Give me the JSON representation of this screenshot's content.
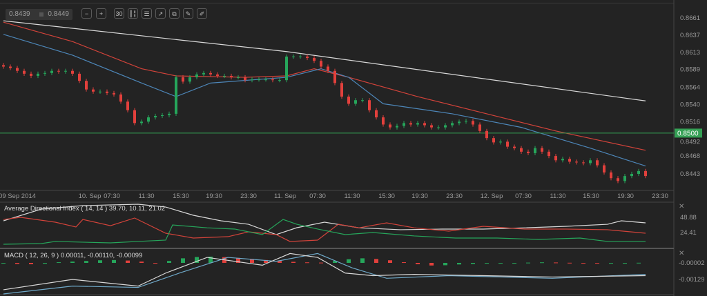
{
  "toolbar": {
    "bid": "0.8439",
    "ask": "0.8449",
    "buttons": [
      {
        "icon": "zoom-out-icon",
        "glyph": "−"
      },
      {
        "icon": "zoom-in-icon",
        "glyph": "+"
      },
      {
        "icon": "timeframe-icon",
        "glyph": "30"
      },
      {
        "icon": "chart-type-icon",
        "glyph": "┃╏"
      },
      {
        "icon": "indicators-icon",
        "glyph": "☰"
      },
      {
        "icon": "trend-chart-icon",
        "glyph": "↗"
      },
      {
        "icon": "copy-icon",
        "glyph": "⧉"
      },
      {
        "icon": "edit-icon",
        "glyph": "✎"
      },
      {
        "icon": "draw-icon",
        "glyph": "✐"
      }
    ]
  },
  "colors": {
    "up": "#26a65b",
    "down": "#e2403c",
    "ma_long": "#d9d9d9",
    "ma_mid": "#d2433a",
    "ma_fast": "#4d86b8",
    "current_price": "#35a055",
    "background": "#232323"
  },
  "chart_data": [
    {
      "type": "candlestick",
      "title": "",
      "y_axis_ticks": [
        "0.8661",
        "0.8637",
        "0.8613",
        "0.8589",
        "0.8564",
        "0.8540",
        "0.8516",
        "0.8492",
        "0.8468",
        "0.8443"
      ],
      "ylim": [
        0.8425,
        0.8664
      ],
      "x_axis_ticks": [
        {
          "label": "09 Sep 2014",
          "index": 2
        },
        {
          "label": "10. Sep",
          "index": 12.5
        },
        {
          "label": "07:30",
          "index": 15.7
        },
        {
          "label": "11:30",
          "index": 20.7
        },
        {
          "label": "15:30",
          "index": 25.7
        },
        {
          "label": "19:30",
          "index": 30.5
        },
        {
          "label": "23:30",
          "index": 35.5
        },
        {
          "label": "11. Sep",
          "index": 40.8
        },
        {
          "label": "07:30",
          "index": 45.5
        },
        {
          "label": "11:30",
          "index": 50.5
        },
        {
          "label": "15:30",
          "index": 55.5
        },
        {
          "label": "19:30",
          "index": 60.3
        },
        {
          "label": "23:30",
          "index": 65.3
        },
        {
          "label": "12. Sep",
          "index": 70.7
        },
        {
          "label": "07:30",
          "index": 75.3
        },
        {
          "label": "11:30",
          "index": 80.3
        },
        {
          "label": "15:30",
          "index": 85.1
        },
        {
          "label": "19:30",
          "index": 90.1
        },
        {
          "label": "23:30",
          "index": 95.1
        }
      ],
      "closes": [
        0.8593,
        0.8591,
        0.8587,
        0.8583,
        0.858,
        0.8583,
        0.8584,
        0.8587,
        0.8586,
        0.8587,
        0.8583,
        0.8573,
        0.8561,
        0.8558,
        0.8558,
        0.8556,
        0.8554,
        0.8544,
        0.8532,
        0.8514,
        0.8516,
        0.8522,
        0.8524,
        0.8525,
        0.8527,
        0.8578,
        0.8572,
        0.8578,
        0.8582,
        0.8584,
        0.8582,
        0.858,
        0.858,
        0.8578,
        0.8578,
        0.8574,
        0.8575,
        0.8575,
        0.8575,
        0.8574,
        0.8574,
        0.8607,
        0.8607,
        0.8607,
        0.8605,
        0.8601,
        0.8593,
        0.8587,
        0.857,
        0.8551,
        0.8541,
        0.8546,
        0.8546,
        0.8532,
        0.8522,
        0.8512,
        0.8508,
        0.851,
        0.8514,
        0.8512,
        0.8514,
        0.8511,
        0.8508,
        0.8508,
        0.8511,
        0.8514,
        0.8516,
        0.8517,
        0.8512,
        0.8503,
        0.8493,
        0.8487,
        0.8488,
        0.8481,
        0.8479,
        0.8474,
        0.8472,
        0.8479,
        0.8474,
        0.8468,
        0.8462,
        0.8464,
        0.846,
        0.8459,
        0.8458,
        0.8462,
        0.8455,
        0.8445,
        0.8437,
        0.8433,
        0.844,
        0.8443,
        0.8447,
        0.844
      ],
      "moving_averages": [
        {
          "color_key": "ma_long",
          "points": [
            [
              0,
              0.8657
            ],
            [
              41,
              0.8614
            ],
            [
              93,
              0.8545
            ]
          ]
        },
        {
          "color_key": "ma_mid",
          "points": [
            [
              0,
              0.8655
            ],
            [
              10,
              0.8628
            ],
            [
              20,
              0.859
            ],
            [
              25,
              0.858
            ],
            [
              35,
              0.8578
            ],
            [
              41,
              0.858
            ],
            [
              45,
              0.859
            ],
            [
              50,
              0.8578
            ],
            [
              60,
              0.8551
            ],
            [
              70,
              0.8527
            ],
            [
              80,
              0.8503
            ],
            [
              93,
              0.8476
            ]
          ]
        },
        {
          "color_key": "ma_fast",
          "points": [
            [
              0,
              0.8638
            ],
            [
              10,
              0.8609
            ],
            [
              20,
              0.857
            ],
            [
              25,
              0.8551
            ],
            [
              30,
              0.857
            ],
            [
              41,
              0.8578
            ],
            [
              46,
              0.859
            ],
            [
              50,
              0.8578
            ],
            [
              55,
              0.8541
            ],
            [
              65,
              0.8527
            ],
            [
              75,
              0.8508
            ],
            [
              85,
              0.8479
            ],
            [
              93,
              0.8454
            ]
          ]
        }
      ],
      "current_price": "0.8500"
    },
    {
      "type": "line",
      "title": "Average Directional Index ( 14, 14 ) 39.70, 10.11, 21.02",
      "y_axis_ticks": [
        "48.88",
        "24.41"
      ],
      "series": [
        {
          "color_key": "ma_long",
          "points": [
            [
              0,
              43.3
            ],
            [
              5.5,
              62.2
            ],
            [
              11.5,
              67.8
            ],
            [
              19.5,
              70
            ],
            [
              23.5,
              65.5
            ],
            [
              27.5,
              52.2
            ],
            [
              31.5,
              43.3
            ],
            [
              35.5,
              37.7
            ],
            [
              39.5,
              21.1
            ],
            [
              42.5,
              32.2
            ],
            [
              46.5,
              41.1
            ],
            [
              51.5,
              32
            ],
            [
              57.5,
              28.9
            ],
            [
              63.5,
              30
            ],
            [
              69.5,
              30
            ],
            [
              75.5,
              32
            ],
            [
              81.5,
              34.4
            ],
            [
              87.5,
              37.7
            ],
            [
              89.5,
              43.3
            ],
            [
              93,
              40
            ]
          ]
        },
        {
          "color_key": "ma_mid",
          "points": [
            [
              0,
              45.5
            ],
            [
              2.5,
              48.9
            ],
            [
              7.5,
              41.1
            ],
            [
              10.5,
              33.3
            ],
            [
              11.5,
              45.5
            ],
            [
              15.5,
              35.4
            ],
            [
              19,
              47.8
            ],
            [
              23.5,
              23.3
            ],
            [
              27.5,
              15.5
            ],
            [
              32.5,
              17.7
            ],
            [
              35.5,
              25.5
            ],
            [
              39.5,
              21.1
            ],
            [
              41.5,
              10
            ],
            [
              45.5,
              12.2
            ],
            [
              48.5,
              37.7
            ],
            [
              51.5,
              32
            ],
            [
              55.5,
              40
            ],
            [
              59.5,
              32
            ],
            [
              64.5,
              26.6
            ],
            [
              69.5,
              34.4
            ],
            [
              75.5,
              30
            ],
            [
              81.5,
              30
            ],
            [
              87.5,
              28.9
            ],
            [
              93,
              23.3
            ]
          ]
        },
        {
          "color_key": "up",
          "points": [
            [
              0,
              5.5
            ],
            [
              5.5,
              6.6
            ],
            [
              7.5,
              10
            ],
            [
              15.5,
              7.7
            ],
            [
              19.5,
              10
            ],
            [
              23.5,
              12.2
            ],
            [
              24.5,
              36.6
            ],
            [
              29.5,
              32
            ],
            [
              33.5,
              30
            ],
            [
              37.5,
              21.1
            ],
            [
              40.5,
              45.5
            ],
            [
              42.5,
              37.7
            ],
            [
              45.5,
              30
            ],
            [
              49.5,
              21.1
            ],
            [
              53.5,
              24.4
            ],
            [
              59.5,
              18.9
            ],
            [
              65.5,
              15.5
            ],
            [
              71.5,
              15.5
            ],
            [
              77.5,
              13.3
            ],
            [
              83.5,
              15.5
            ],
            [
              87.5,
              10
            ],
            [
              93,
              10
            ]
          ]
        }
      ]
    },
    {
      "type": "bar+line",
      "title": "MACD ( 12, 26, 9 ) 0.00011, -0.00110, -0.00099",
      "y_axis_ticks": [
        "-0.00002",
        "-0.00129"
      ],
      "histogram": [
        -5e-05,
        -8e-05,
        -0.0001,
        -6e-05,
        5e-05,
        0.0001,
        0.00015,
        0.0002,
        0.00022,
        0.00018,
        0.0001,
        -5e-05,
        0.00015,
        0.00035,
        0.00045,
        0.00048,
        0.00044,
        0.00038,
        0.0003,
        0.00022,
        0.00015,
        8e-05,
        4e-05,
        2e-05,
        0.00015,
        0.00028,
        0.00035,
        0.0003,
        0.0002,
        5e-05,
        -0.0001,
        -0.0002,
        -0.00018,
        -0.00012,
        -8e-05,
        -4e-05,
        -2e-05,
        0.0,
        2e-05,
        4e-05,
        3e-05,
        1e-05,
        -1e-05,
        -2e-05,
        -1e-05,
        0.0,
        1e-05
      ],
      "macd_line": [
        [
          0,
          -0.00208
        ],
        [
          10,
          -0.00129
        ],
        [
          19.5,
          -0.0018
        ],
        [
          23.5,
          -0.0008
        ],
        [
          29.5,
          0.0004
        ],
        [
          37.5,
          -0.0002
        ],
        [
          41.5,
          0.0007
        ],
        [
          45.5,
          0.0004
        ],
        [
          49.5,
          -0.0008
        ],
        [
          53.5,
          -0.001
        ],
        [
          59.5,
          -0.0009
        ],
        [
          69.5,
          -0.001
        ],
        [
          79.5,
          -0.0011
        ],
        [
          93,
          -0.001
        ]
      ],
      "signal_line": [
        [
          0,
          -0.0024
        ],
        [
          10,
          -0.0018
        ],
        [
          19.5,
          -0.0019
        ],
        [
          25.5,
          -0.0008
        ],
        [
          32.5,
          0.0004
        ],
        [
          39.5,
          0.0001
        ],
        [
          45.5,
          0.0007
        ],
        [
          50.5,
          -0.0004
        ],
        [
          55.5,
          -0.0012
        ],
        [
          64.5,
          -0.001
        ],
        [
          79.5,
          -0.0012
        ],
        [
          93,
          -0.0009
        ]
      ]
    }
  ]
}
